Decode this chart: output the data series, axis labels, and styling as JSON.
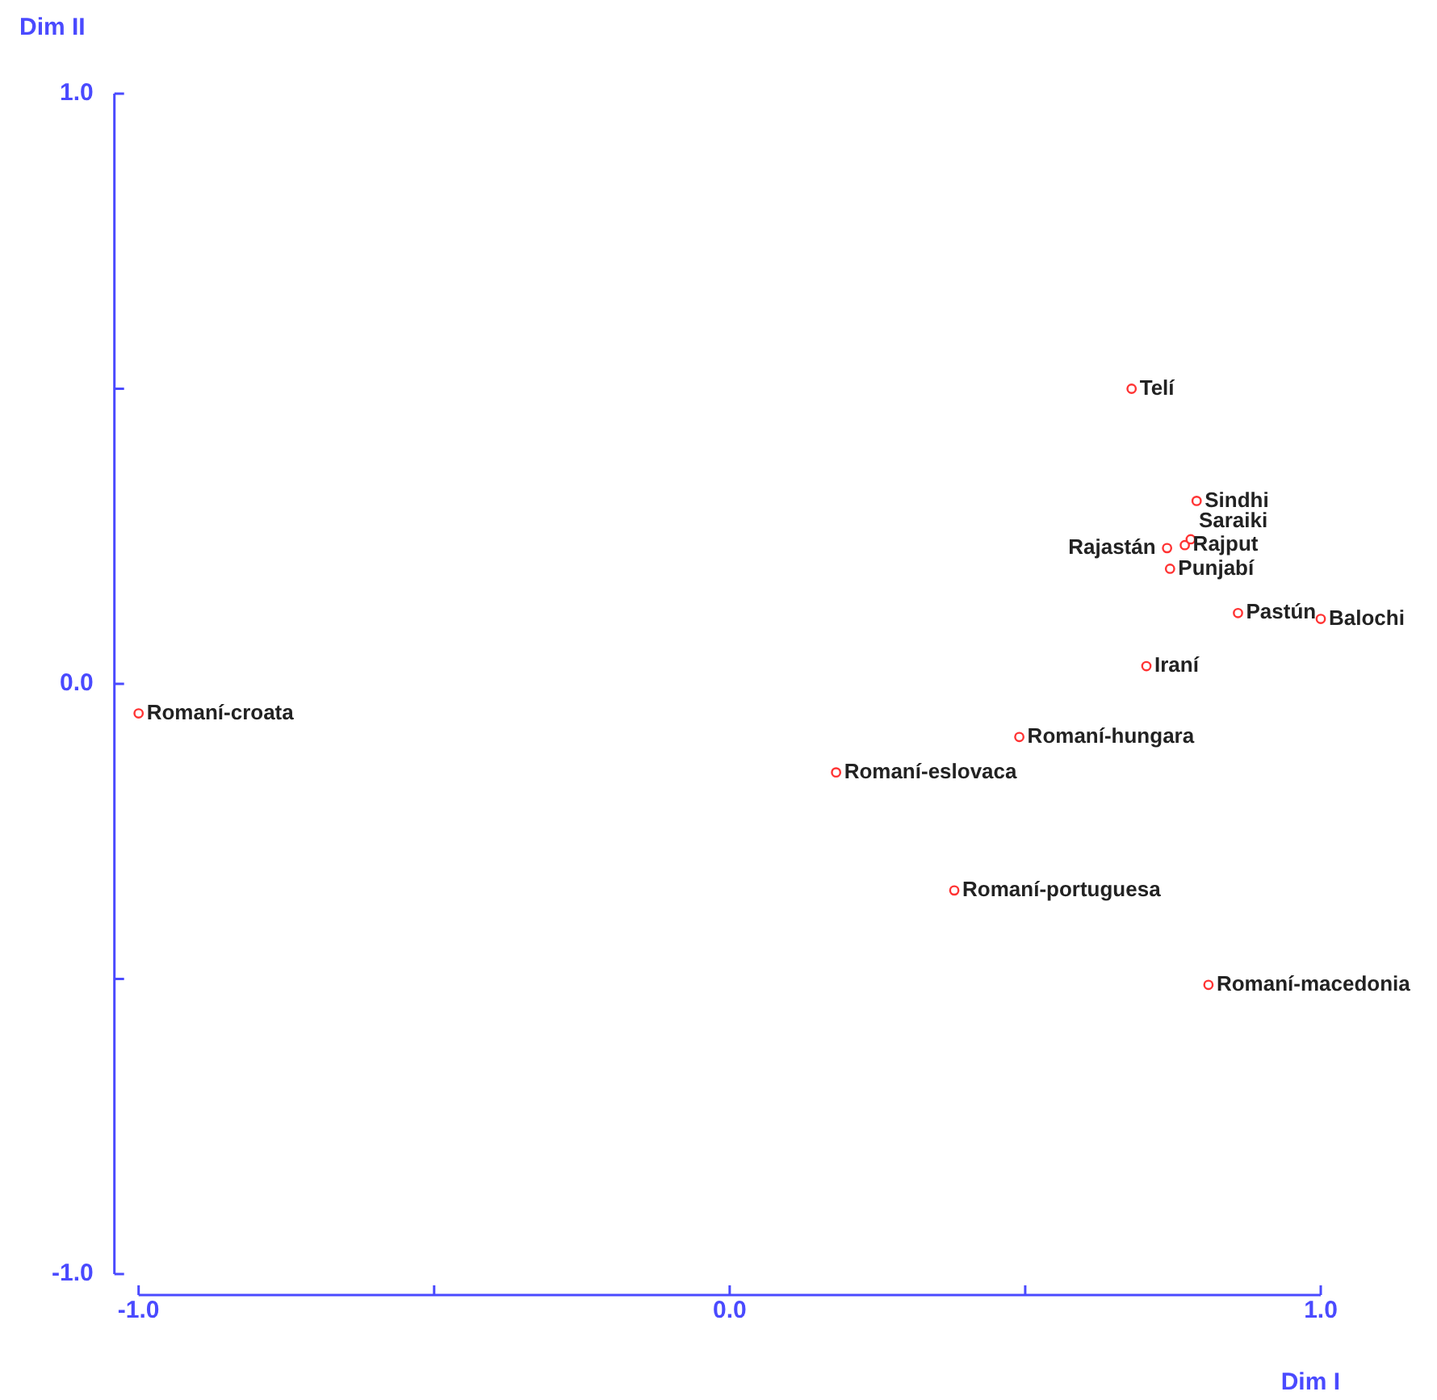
{
  "chart_data": {
    "type": "scatter",
    "xlabel": "Dim I",
    "ylabel": "Dim II",
    "xlim": [
      -1.0,
      1.0
    ],
    "ylim": [
      -1.0,
      1.0
    ],
    "xticks": [
      {
        "value": -1,
        "label": "-1.0"
      },
      {
        "value": -0.5,
        "label": null
      },
      {
        "value": 0,
        "label": "0.0"
      },
      {
        "value": 0.5,
        "label": null
      },
      {
        "value": 1,
        "label": "1.0"
      }
    ],
    "yticks": [
      {
        "value": -1,
        "label": "-1.0"
      },
      {
        "value": -0.5,
        "label": null
      },
      {
        "value": 0,
        "label": "0.0"
      },
      {
        "value": 0.5,
        "label": null
      },
      {
        "value": 1,
        "label": "1.0"
      }
    ],
    "marker": "circle",
    "legend": false,
    "series": [
      {
        "name": "Telí",
        "color": "#ff3333",
        "x": [
          0.68
        ],
        "values": [
          0.5
        ]
      },
      {
        "name": "Sindhi",
        "color": "#ff3333",
        "x": [
          0.79
        ],
        "values": [
          0.31
        ]
      },
      {
        "name": "Saraiki",
        "color": "#ff3333",
        "x": [
          0.78
        ],
        "values": [
          0.245
        ]
      },
      {
        "name": "Rajput",
        "color": "#ff3333",
        "x": [
          0.77
        ],
        "values": [
          0.235
        ]
      },
      {
        "name": "Rajastán",
        "color": "#ff3333",
        "x": [
          0.74
        ],
        "values": [
          0.23
        ]
      },
      {
        "name": "Punjabí",
        "color": "#ff3333",
        "x": [
          0.745
        ],
        "values": [
          0.195
        ]
      },
      {
        "name": "Pastún",
        "color": "#ff3333",
        "x": [
          0.86
        ],
        "values": [
          0.12
        ]
      },
      {
        "name": "Balochi",
        "color": "#ff3333",
        "x": [
          1.0
        ],
        "values": [
          0.11
        ]
      },
      {
        "name": "Iraní",
        "color": "#ff3333",
        "x": [
          0.705
        ],
        "values": [
          0.03
        ]
      },
      {
        "name": "Romaní-croata",
        "color": "#ff3333",
        "x": [
          -1.0
        ],
        "values": [
          -0.05
        ]
      },
      {
        "name": "Romaní-hungara",
        "color": "#ff3333",
        "x": [
          0.49
        ],
        "values": [
          -0.09
        ]
      },
      {
        "name": "Romaní-eslovaca",
        "color": "#ff3333",
        "x": [
          0.18
        ],
        "values": [
          -0.15
        ]
      },
      {
        "name": "Romaní-portuguesa",
        "color": "#ff3333",
        "x": [
          0.38
        ],
        "values": [
          -0.35
        ]
      },
      {
        "name": "Romaní-macedonia",
        "color": "#ff3333",
        "x": [
          0.81
        ],
        "values": [
          -0.51
        ]
      }
    ]
  }
}
